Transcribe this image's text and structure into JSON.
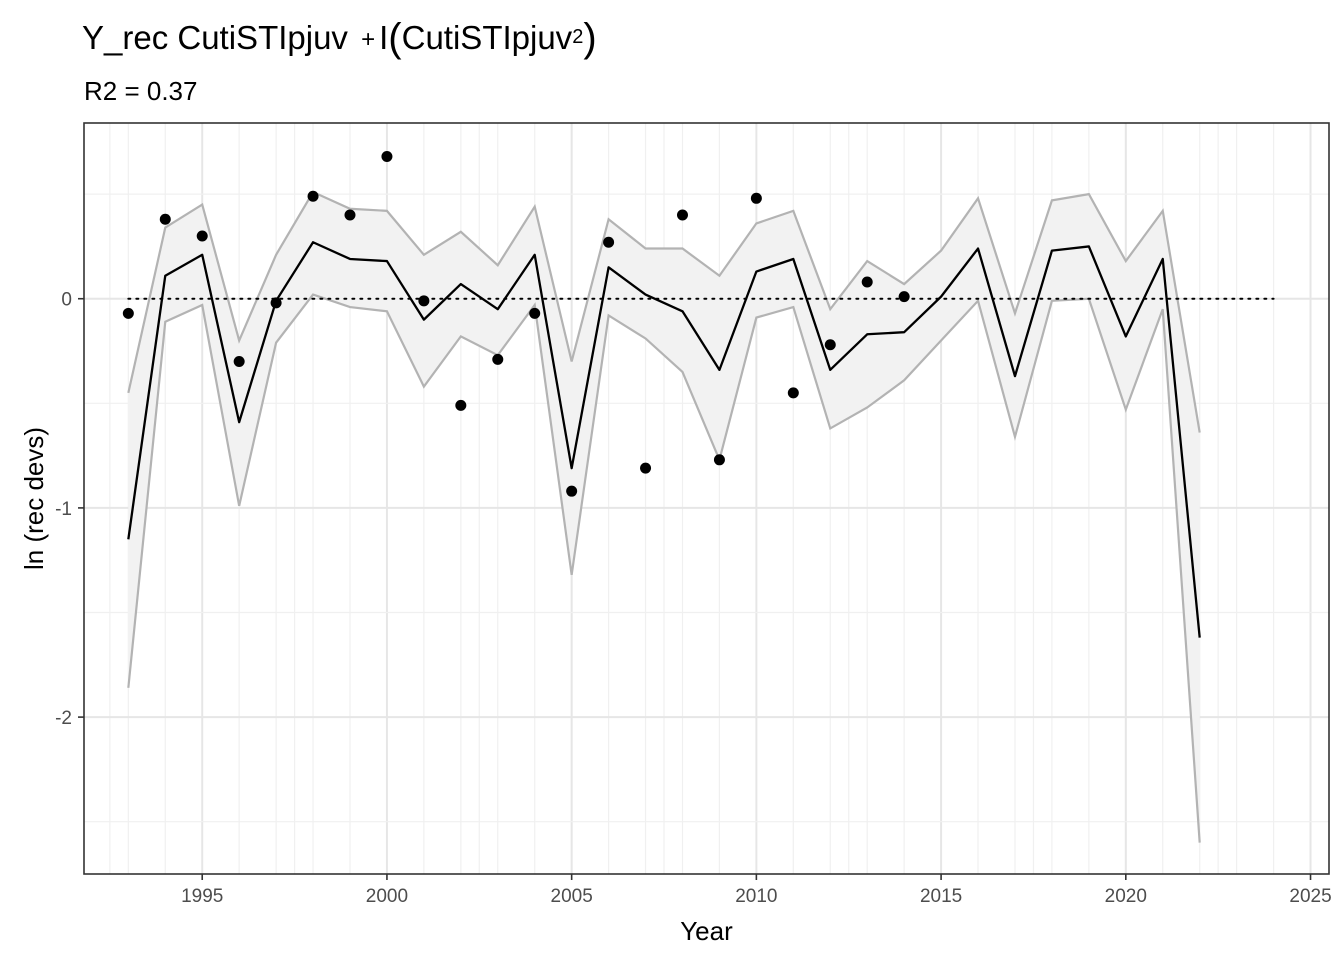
{
  "title": {
    "prefix": "Y_rec CutiSTIpjuv",
    "plus": "+",
    "func": "I",
    "open": "(",
    "inner": "CutiSTIpjuv",
    "power": "2",
    "close": ")"
  },
  "subtitle": "R2 = 0.37",
  "chart_data": {
    "type": "line",
    "xlabel": "Year",
    "ylabel": "ln (rec devs)",
    "xlim": [
      1991.8,
      2025.5
    ],
    "ylim": [
      -2.75,
      0.84
    ],
    "x_major_ticks": [
      1995,
      2000,
      2005,
      2010,
      2015,
      2020,
      2025
    ],
    "x_tick_labels": [
      "1995",
      "2000",
      "2005",
      "2010",
      "2015",
      "2020",
      "2025"
    ],
    "x_minor_ticks": [
      1992.5,
      1997.5,
      2002.5,
      2007.5,
      2012.5,
      2017.5,
      2022.5
    ],
    "x_year_gridlines": [
      1993,
      1994,
      1996,
      1997,
      1998,
      1999,
      2001,
      2002,
      2003,
      2004,
      2006,
      2007,
      2008,
      2009,
      2011,
      2012,
      2013,
      2014,
      2016,
      2017,
      2018,
      2019,
      2021,
      2022,
      2023,
      2024
    ],
    "y_major_ticks": [
      0,
      -1,
      -2
    ],
    "y_tick_labels": [
      "0",
      "-1",
      "-2"
    ],
    "y_minor_ticks": [
      0.5,
      -0.5,
      -1.5,
      -2.5
    ],
    "grid": true,
    "reference_line": {
      "y": 0,
      "x_from": 1993,
      "x_to": 2024,
      "style": "dotted"
    },
    "years": [
      1993,
      1994,
      1995,
      1996,
      1997,
      1998,
      1999,
      2000,
      2001,
      2002,
      2003,
      2004,
      2005,
      2006,
      2007,
      2008,
      2009,
      2010,
      2011,
      2012,
      2013,
      2014,
      2015,
      2016,
      2017,
      2018,
      2019,
      2020,
      2021,
      2022
    ],
    "fit": [
      -1.15,
      0.11,
      0.21,
      -0.59,
      -0.01,
      0.27,
      0.19,
      0.18,
      -0.1,
      0.07,
      -0.05,
      0.21,
      -0.81,
      0.15,
      0.02,
      -0.06,
      -0.34,
      0.13,
      0.19,
      -0.34,
      -0.17,
      -0.16,
      0.01,
      0.24,
      -0.37,
      0.23,
      0.25,
      -0.18,
      0.19,
      -1.62
    ],
    "upper": [
      -0.45,
      0.34,
      0.45,
      -0.2,
      0.21,
      0.51,
      0.43,
      0.42,
      0.21,
      0.32,
      0.16,
      0.44,
      -0.3,
      0.38,
      0.24,
      0.24,
      0.11,
      0.36,
      0.42,
      -0.05,
      0.18,
      0.07,
      0.23,
      0.48,
      -0.07,
      0.47,
      0.5,
      0.18,
      0.42,
      -0.64
    ],
    "lower": [
      -1.86,
      -0.11,
      -0.03,
      -0.99,
      -0.21,
      0.02,
      -0.04,
      -0.06,
      -0.42,
      -0.18,
      -0.27,
      -0.03,
      -1.32,
      -0.08,
      -0.19,
      -0.35,
      -0.77,
      -0.09,
      -0.04,
      -0.62,
      -0.52,
      -0.39,
      -0.2,
      -0.01,
      -0.66,
      -0.01,
      0.0,
      -0.53,
      -0.05,
      -2.6
    ],
    "observed": {
      "x": [
        1993,
        1994,
        1995,
        1996,
        1997,
        1998,
        1999,
        2000,
        2001,
        2002,
        2003,
        2004,
        2005,
        2006,
        2007,
        2008,
        2009,
        2010,
        2011,
        2012,
        2013,
        2014
      ],
      "y": [
        -0.07,
        0.38,
        0.3,
        -0.3,
        -0.02,
        0.49,
        0.4,
        0.68,
        -0.01,
        -0.51,
        -0.29,
        -0.07,
        -0.92,
        0.27,
        -0.81,
        0.4,
        -0.77,
        0.48,
        -0.45,
        -0.22,
        0.08,
        0.01
      ]
    },
    "colors": {
      "ribbon_fill": "#f2f2f2",
      "ribbon_line": "#b3b3b3",
      "fit_line": "#000000",
      "points": "#000000",
      "grid_major": "#e6e6e6",
      "grid_minor": "#f0f0f0",
      "panel_border": "#333333"
    }
  }
}
